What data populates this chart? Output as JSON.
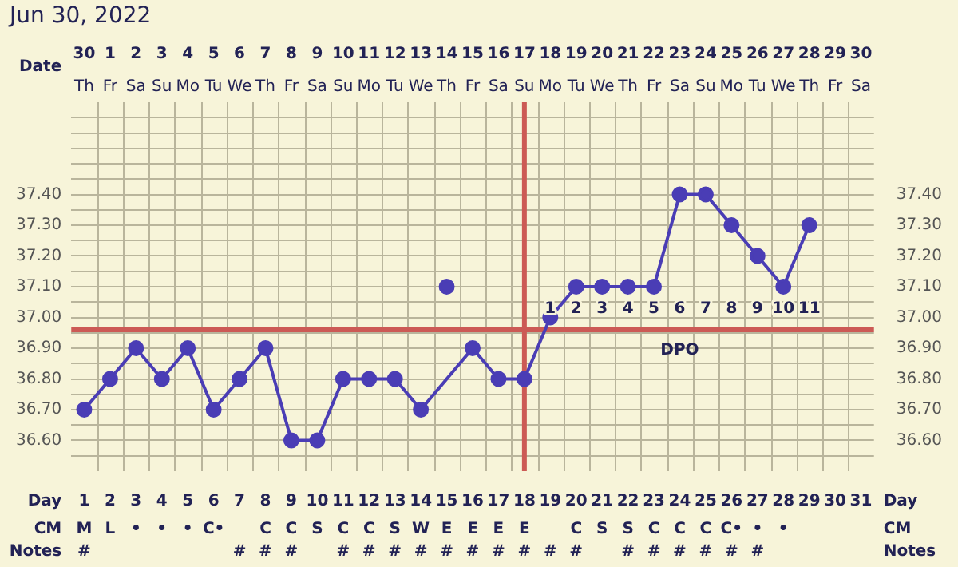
{
  "chart_data": [
    {
      "type": "other",
      "cell_labels": [
        [
          "Th",
          "Fr",
          "Sa",
          "Su",
          "Mo",
          "Tu",
          "We",
          "Th",
          "Fr",
          "Sa",
          "Su",
          "Mo",
          "Tu",
          "We",
          "Th",
          "Fr",
          "Sa",
          "Su",
          "Mo",
          "Tu",
          "We",
          "Th",
          "Fr",
          "Sa",
          "Su",
          "Mo",
          "Tu",
          "We",
          "Th",
          "Fr",
          "Sa"
        ]
      ]
    },
    {
      "type": "line",
      "title": "Jun 30, 2022",
      "xlabel": "Date",
      "x2label": "Day",
      "annotations": [
        "1",
        "2",
        "3",
        "4",
        "5",
        "6",
        "7",
        "8",
        "9",
        "10",
        "11",
        "DPO"
      ],
      "x": [
        "2022-06-30",
        "2022-07-01",
        "2022-07-02",
        "2022-07-03",
        "2022-07-04",
        "2022-07-05",
        "2022-07-06",
        "2022-07-07",
        "2022-07-08",
        "2022-07-09",
        "2022-07-10",
        "2022-07-11",
        "2022-07-12",
        "2022-07-13",
        "2022-07-14",
        "2022-07-15",
        "2022-07-16",
        "2022-07-17",
        "2022-07-18",
        "2022-07-19",
        "2022-07-20",
        "2022-07-21",
        "2022-07-22",
        "2022-07-23",
        "2022-07-24",
        "2022-07-25",
        "2022-07-26",
        "2022-07-27",
        "2022-07-28"
      ],
      "xlim": [
        "2022-06-29T12:00",
        "2022-07-30T12:00"
      ],
      "xticks": [
        {
          "value": "2022-06-30",
          "label": "30"
        },
        {
          "value": "2022-07-01",
          "label": "1"
        },
        {
          "value": "2022-07-02",
          "label": "2"
        },
        {
          "value": "2022-07-03",
          "label": "3"
        },
        {
          "value": "2022-07-04",
          "label": "4"
        },
        {
          "value": "2022-07-05",
          "label": "5"
        },
        {
          "value": "2022-07-06",
          "label": "6"
        },
        {
          "value": "2022-07-07",
          "label": "7"
        },
        {
          "value": "2022-07-08",
          "label": "8"
        },
        {
          "value": "2022-07-09",
          "label": "9"
        },
        {
          "value": "2022-07-10",
          "label": "10"
        },
        {
          "value": "2022-07-11",
          "label": "11"
        },
        {
          "value": "2022-07-12",
          "label": "12"
        },
        {
          "value": "2022-07-13",
          "label": "13"
        },
        {
          "value": "2022-07-14",
          "label": "14"
        },
        {
          "value": "2022-07-15",
          "label": "15"
        },
        {
          "value": "2022-07-16",
          "label": "16"
        },
        {
          "value": "2022-07-17",
          "label": "17"
        },
        {
          "value": "2022-07-18",
          "label": "18"
        },
        {
          "value": "2022-07-19",
          "label": "19"
        },
        {
          "value": "2022-07-20",
          "label": "20"
        },
        {
          "value": "2022-07-21",
          "label": "21"
        },
        {
          "value": "2022-07-22",
          "label": "22"
        },
        {
          "value": "2022-07-23",
          "label": "23"
        },
        {
          "value": "2022-07-24",
          "label": "24"
        },
        {
          "value": "2022-07-25",
          "label": "25"
        },
        {
          "value": "2022-07-26",
          "label": "26"
        },
        {
          "value": "2022-07-27",
          "label": "27"
        },
        {
          "value": "2022-07-28",
          "label": "28"
        },
        {
          "value": "2022-07-29",
          "label": "29"
        },
        {
          "value": "2022-07-30",
          "label": "30"
        }
      ],
      "x2lim": [
        0.5,
        31.5
      ],
      "x2ticks": [
        1,
        2,
        3,
        4,
        5,
        6,
        7,
        8,
        9,
        10,
        11,
        12,
        13,
        14,
        15,
        16,
        17,
        18,
        19,
        20,
        21,
        22,
        23,
        24,
        25,
        26,
        27,
        28,
        29,
        30,
        31
      ],
      "series": [
        {
          "type": "line",
          "color": "#4a3db5",
          "values": [
            36.7,
            36.8,
            36.9,
            36.8,
            36.9,
            36.7,
            36.8,
            36.9,
            36.6,
            36.6,
            36.8,
            36.8,
            36.8,
            36.7,
            null,
            36.9,
            36.8,
            36.8,
            37.0,
            37.1,
            37.1,
            37.1,
            37.1,
            37.4,
            37.4,
            37.3,
            37.2,
            37.1,
            37.3
          ]
        },
        {
          "type": "scatter",
          "color": "#4a3db5",
          "values": [
            null,
            null,
            null,
            null,
            null,
            null,
            null,
            null,
            null,
            null,
            null,
            null,
            null,
            null,
            37.1,
            null,
            null,
            null,
            null,
            null,
            null,
            null,
            null,
            null,
            null,
            null,
            null,
            null,
            null
          ]
        }
      ],
      "ylim": [
        36.5,
        37.7
      ],
      "yticks": [
        {
          "value": 36.55,
          "label": null
        },
        {
          "value": 36.6,
          "label": "36.60"
        },
        {
          "value": 36.65,
          "label": null
        },
        {
          "value": 36.7,
          "label": "36.70"
        },
        {
          "value": 36.75,
          "label": null
        },
        {
          "value": 36.8,
          "label": "36.80"
        },
        {
          "value": 36.85,
          "label": null
        },
        {
          "value": 36.9,
          "label": "36.90"
        },
        {
          "value": 36.95,
          "label": null
        },
        {
          "value": 37.0,
          "label": "37.00"
        },
        {
          "value": 37.05,
          "label": null
        },
        {
          "value": 37.1,
          "label": "37.10"
        },
        {
          "value": 37.15,
          "label": null
        },
        {
          "value": 37.2,
          "label": "37.20"
        },
        {
          "value": 37.25,
          "label": null
        },
        {
          "value": 37.3,
          "label": "37.30"
        },
        {
          "value": 37.35,
          "label": null
        },
        {
          "value": 37.4,
          "label": "37.40"
        },
        {
          "value": 37.45,
          "label": null
        },
        {
          "value": 37.5,
          "label": null
        },
        {
          "value": 37.55,
          "label": null
        },
        {
          "value": 37.6,
          "label": null
        },
        {
          "value": 37.65,
          "label": null
        }
      ],
      "y2lim": [
        36.5,
        37.7
      ],
      "y2ticks": [
        {
          "value": 36.6,
          "label": "36.60"
        },
        {
          "value": 36.7,
          "label": "36.70"
        },
        {
          "value": 36.8,
          "label": "36.80"
        },
        {
          "value": 36.9,
          "label": "36.90"
        },
        {
          "value": 37.0,
          "label": "37.00"
        },
        {
          "value": 37.1,
          "label": "37.10"
        },
        {
          "value": 37.2,
          "label": "37.20"
        },
        {
          "value": 37.3,
          "label": "37.30"
        },
        {
          "value": 37.4,
          "label": "37.40"
        }
      ],
      "ref_lines": [
        {
          "axis": "y",
          "value": 36.96,
          "color": "#cc5a55"
        },
        {
          "axis": "x",
          "value": "2022-07-17",
          "color": "#cc5a55"
        }
      ],
      "grid": true,
      "legend": false,
      "marker": "circle",
      "line_style": "solid"
    },
    {
      "type": "other",
      "y_categories": [
        "CM",
        "Notes"
      ],
      "y2_categories": [
        "CM",
        "Notes"
      ],
      "cell_labels": [
        [
          "M",
          "L",
          "•",
          "•",
          "•",
          "C•",
          null,
          "C",
          "C",
          "S",
          "C",
          "C",
          "S",
          "W",
          "E",
          "E",
          "E",
          "E",
          null,
          "C",
          "S",
          "S",
          "C",
          "C",
          "C",
          "C•",
          "•",
          "•",
          null,
          null,
          null
        ],
        [
          "#",
          null,
          null,
          null,
          null,
          null,
          "#",
          "#",
          "#",
          null,
          "#",
          "#",
          "#",
          "#",
          "#",
          "#",
          "#",
          "#",
          "#",
          "#",
          null,
          "#",
          "#",
          "#",
          "#",
          "#",
          "#",
          null,
          null,
          null,
          null
        ]
      ]
    }
  ]
}
